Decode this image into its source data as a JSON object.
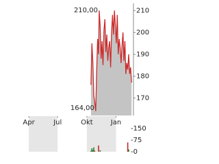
{
  "chart_data": [
    {
      "type": "area",
      "color": "#cc2a2a",
      "fill": "#c4c4c4",
      "annotations": [
        "210,00",
        "164,00"
      ],
      "x": [
        286,
        289,
        292,
        295,
        298,
        301,
        304,
        307,
        310,
        312,
        315,
        318,
        321,
        324,
        327,
        330,
        333,
        336,
        339,
        342,
        345,
        348,
        351,
        354,
        357,
        360,
        363,
        366,
        369,
        372,
        375,
        378,
        381,
        384,
        387,
        390,
        393,
        396,
        399,
        402,
        405,
        408,
        411,
        414
      ],
      "values": [
        176,
        195,
        186,
        171,
        168,
        164,
        182,
        197,
        190,
        210,
        203,
        188,
        196,
        185,
        201,
        206,
        191,
        199,
        187,
        193,
        196,
        184,
        200,
        208,
        199,
        210,
        203,
        195,
        208,
        190,
        197,
        193,
        186,
        194,
        200,
        187,
        196,
        181,
        186,
        183,
        190,
        181,
        184,
        177
      ],
      "xlim": [
        10,
        420
      ],
      "xticks": [
        {
          "value": 90,
          "label": "Apr"
        },
        {
          "value": 181,
          "label": "Jul"
        },
        {
          "value": 273,
          "label": "Okt"
        },
        {
          "value": 365,
          "label": "Jan"
        }
      ],
      "ylim": [
        162,
        212
      ],
      "yticks": [
        170,
        180,
        190,
        200,
        210
      ]
    },
    {
      "type": "bar",
      "x": [
        286,
        289,
        292,
        295,
        298,
        310,
        315,
        402,
        405
      ],
      "values": [
        5,
        22,
        10,
        28,
        6,
        40,
        9,
        60,
        15
      ],
      "colors": [
        "#2e7d32",
        "#2e7d32",
        "#2e7d32",
        "#2e7d32",
        "#c62828",
        "#c62828",
        "#2e7d32",
        "#c62828",
        "#2e7d32"
      ],
      "xlim": [
        10,
        420
      ],
      "ylim": [
        0,
        230
      ],
      "yticks": [
        {
          "value": 150,
          "label": "-150"
        },
        {
          "value": 75,
          "label": "-75"
        },
        {
          "value": 0,
          "label": "-0"
        }
      ]
    }
  ]
}
